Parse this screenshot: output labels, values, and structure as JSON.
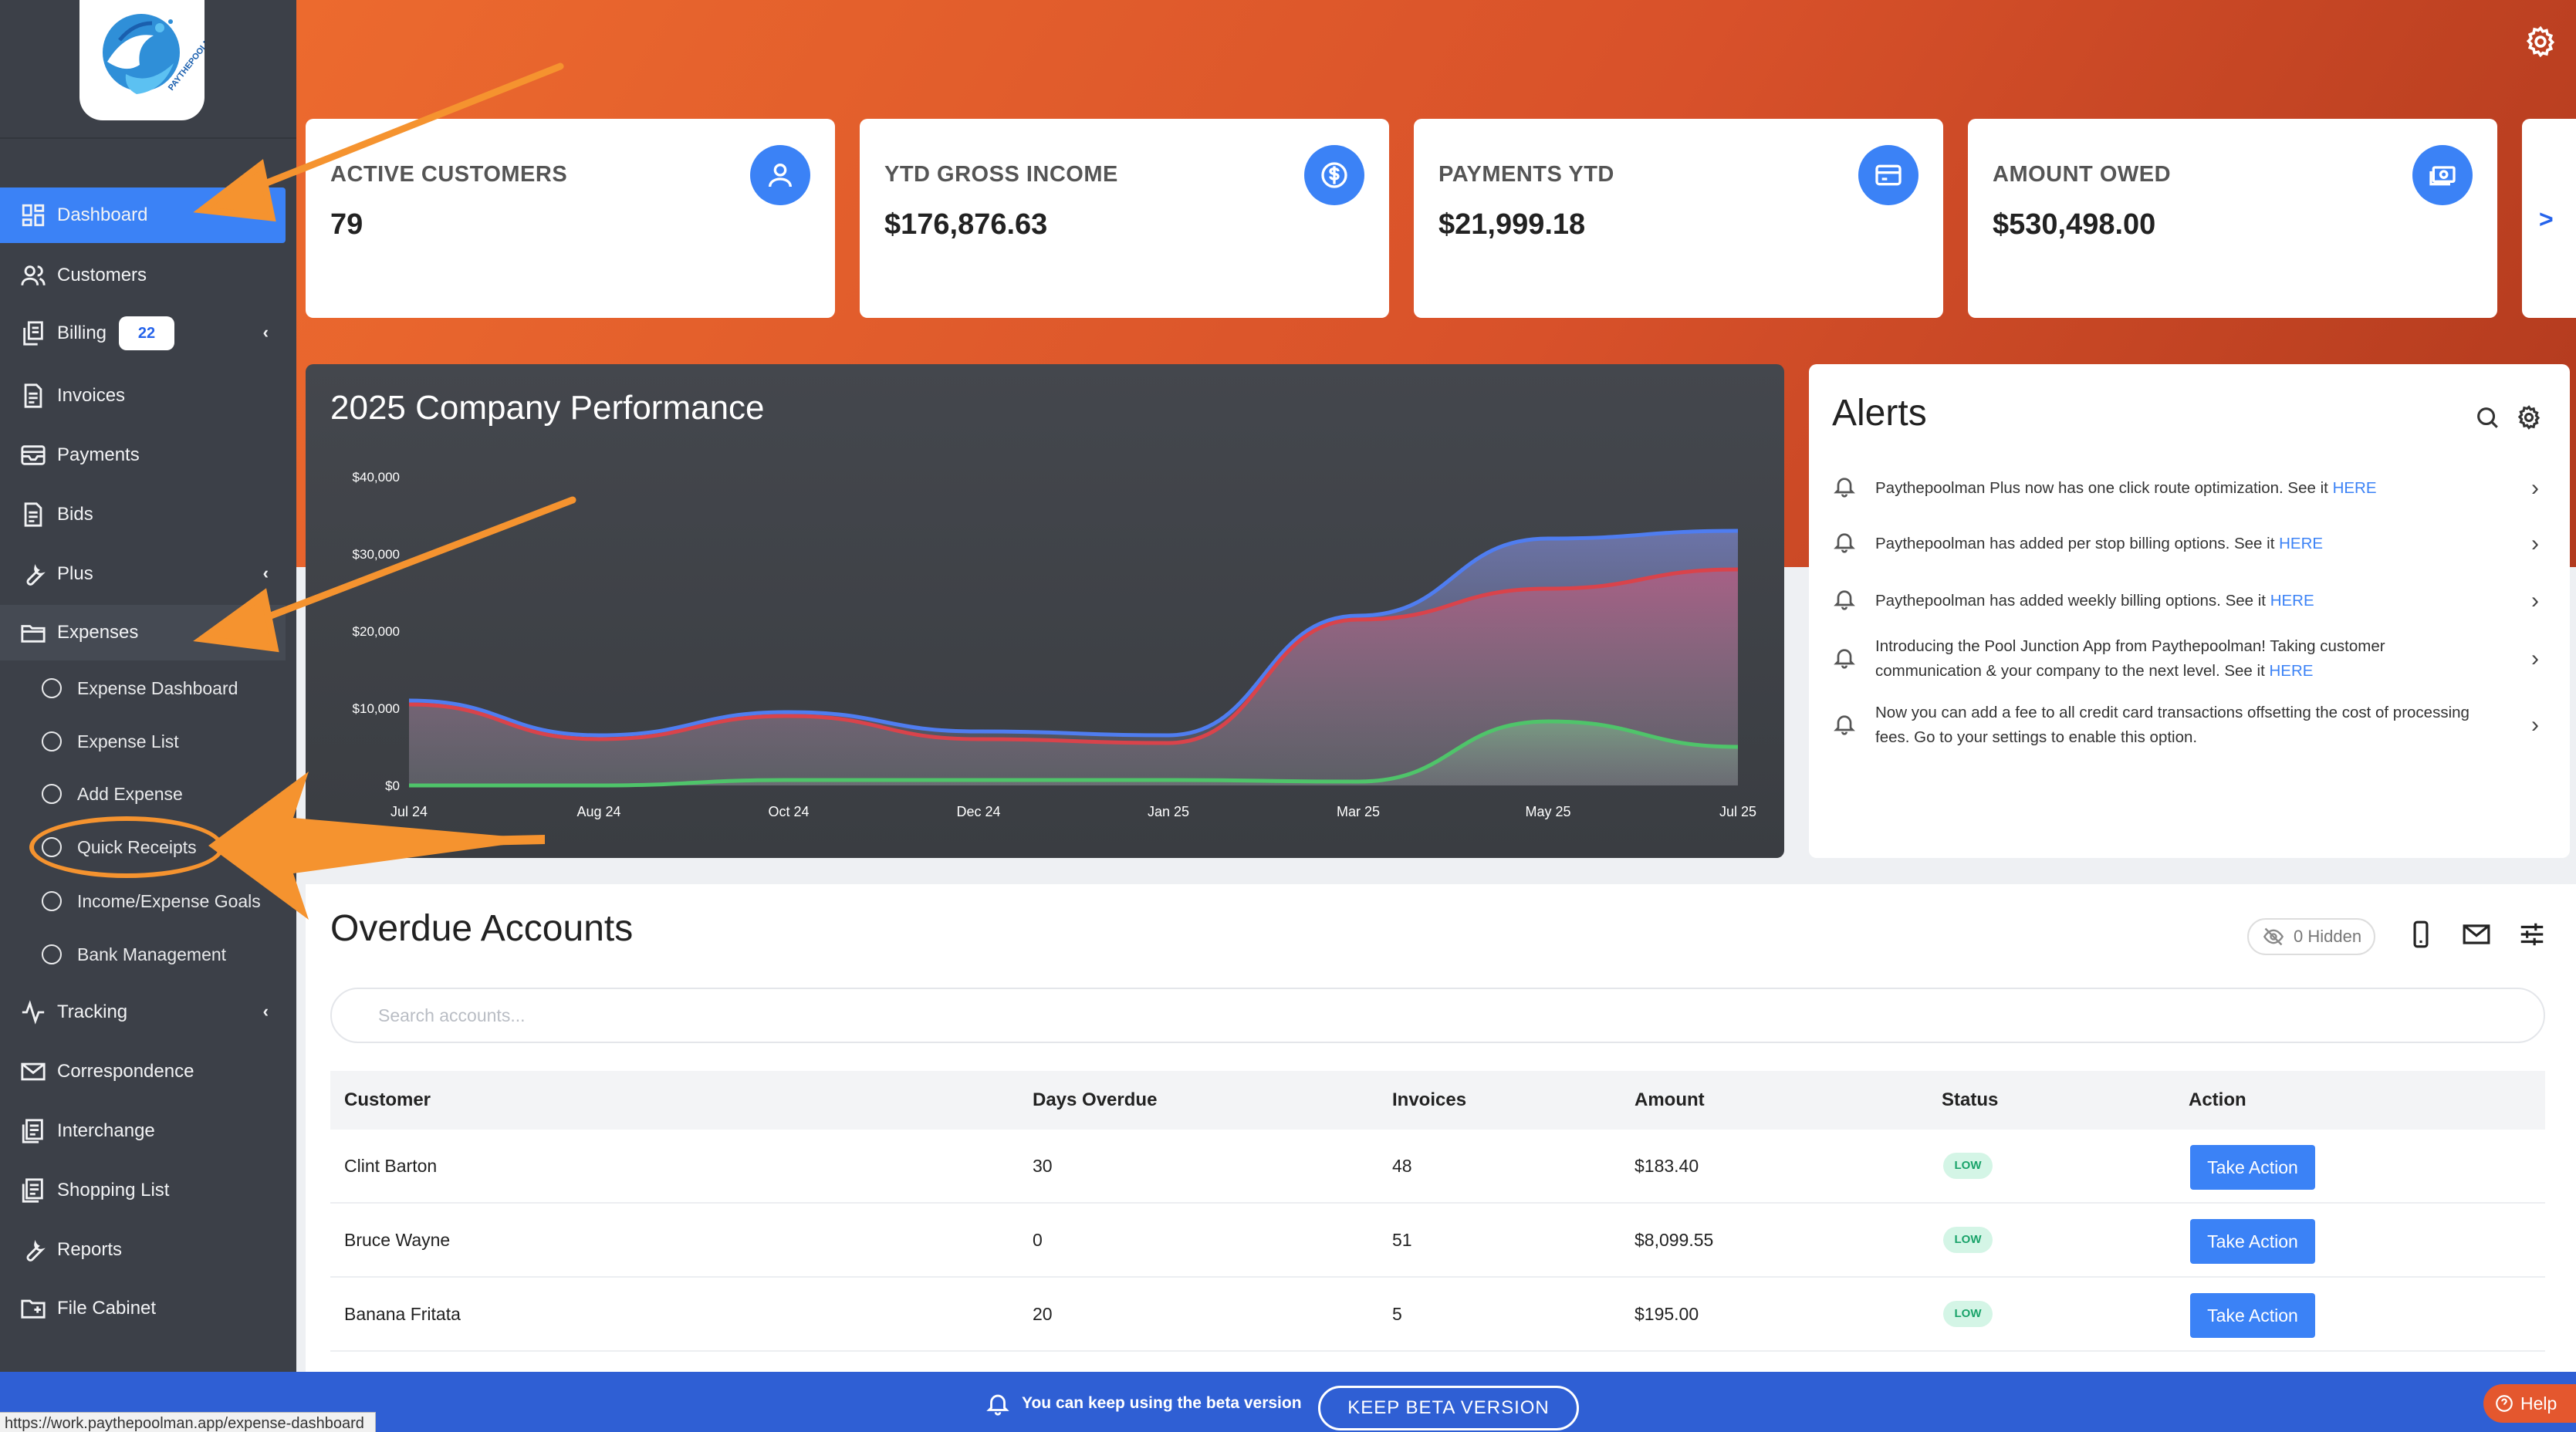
{
  "colors": {
    "accent": "#3b82f6",
    "sidebar": "#3c4048",
    "hero": "#d8512a",
    "annotation": "#f5932f",
    "series_blue": "#4f7df0",
    "series_red": "#d9434b",
    "series_green": "#4fc46a"
  },
  "logo": {
    "icon": "paythepoolman-logo",
    "text": "PAYTHEPOOLMAN"
  },
  "sidebar": {
    "items": [
      {
        "label": "Dashboard",
        "icon": "dashboard-icon"
      },
      {
        "label": "Customers",
        "icon": "users-icon"
      },
      {
        "label": "Billing",
        "icon": "billing-icon",
        "badge": "22"
      },
      {
        "label": "Invoices",
        "icon": "invoice-icon"
      },
      {
        "label": "Payments",
        "icon": "payments-icon"
      },
      {
        "label": "Bids",
        "icon": "bids-icon"
      },
      {
        "label": "Plus",
        "icon": "wrench-icon"
      },
      {
        "label": "Expenses",
        "icon": "folder-icon"
      },
      {
        "label": "Tracking",
        "icon": "activity-icon"
      },
      {
        "label": "Correspondence",
        "icon": "mail-icon"
      },
      {
        "label": "Interchange",
        "icon": "interchange-icon"
      },
      {
        "label": "Shopping List",
        "icon": "list-icon"
      },
      {
        "label": "Reports",
        "icon": "wrench-icon"
      },
      {
        "label": "File Cabinet",
        "icon": "file-cabinet-icon"
      }
    ],
    "expense_sub": [
      "Expense Dashboard",
      "Expense List",
      "Add Expense",
      "Quick Receipts",
      "Income/Expense Goals",
      "Bank Management"
    ]
  },
  "stats": [
    {
      "label": "ACTIVE CUSTOMERS",
      "value": "79"
    },
    {
      "label": "YTD GROSS INCOME",
      "value": "$176,876.63"
    },
    {
      "label": "PAYMENTS YTD",
      "value": "$21,999.18"
    },
    {
      "label": "AMOUNT OWED",
      "value": "$530,498.00"
    }
  ],
  "stats_next": ">",
  "chart_data": {
    "type": "area",
    "title": "2025 Company Performance",
    "categories": [
      "Jul 24",
      "Aug 24",
      "Oct 24",
      "Dec 24",
      "Jan 25",
      "Mar 25",
      "May 25",
      "Jul 25"
    ],
    "y_ticks": [
      "$0",
      "$10,000",
      "$20,000",
      "$30,000",
      "$40,000"
    ],
    "ylim": [
      0,
      40000
    ],
    "series": [
      {
        "name": "blue",
        "values": [
          11000,
          6500,
          9500,
          7000,
          6500,
          22000,
          32000,
          33000
        ]
      },
      {
        "name": "red",
        "values": [
          10500,
          6000,
          9000,
          6000,
          5500,
          21500,
          25500,
          28000
        ]
      },
      {
        "name": "green",
        "values": [
          0,
          0,
          700,
          700,
          700,
          500,
          8300,
          5000
        ]
      }
    ]
  },
  "alerts": {
    "title": "Alerts",
    "items": [
      {
        "text": "Paythepoolman Plus now has one click route optimization. See it ",
        "link": "HERE"
      },
      {
        "text": "Paythepoolman has added per stop billing options. See it ",
        "link": "HERE"
      },
      {
        "text": "Paythepoolman has added weekly billing options. See it ",
        "link": "HERE"
      },
      {
        "text": "Introducing the Pool Junction App from Paythepoolman! Taking customer communication & your company to the next level. See it ",
        "link": "HERE"
      },
      {
        "text": "Now you can add a fee to all credit card transactions offsetting the cost of processing fees. Go to your settings to enable this option.",
        "link": ""
      }
    ]
  },
  "overdue": {
    "title": "Overdue Accounts",
    "hidden_label": "0 Hidden",
    "search_placeholder": "Search accounts...",
    "columns": [
      "Customer",
      "Days Overdue",
      "Invoices",
      "Amount",
      "Status",
      "Action"
    ],
    "rows": [
      {
        "customer": "Clint Barton",
        "days": "30",
        "invoices": "48",
        "amount": "$183.40",
        "status": "LOW",
        "action": "Take Action"
      },
      {
        "customer": "Bruce Wayne",
        "days": "0",
        "invoices": "51",
        "amount": "$8,099.55",
        "status": "LOW",
        "action": "Take Action"
      },
      {
        "customer": "Banana Fritata",
        "days": "20",
        "invoices": "5",
        "amount": "$195.00",
        "status": "LOW",
        "action": "Take Action"
      }
    ]
  },
  "beta": {
    "message": "You can keep using the beta version",
    "button": "KEEP BETA VERSION"
  },
  "help": {
    "label": "Help"
  },
  "status_url": "https://work.paythepoolman.app/expense-dashboard"
}
